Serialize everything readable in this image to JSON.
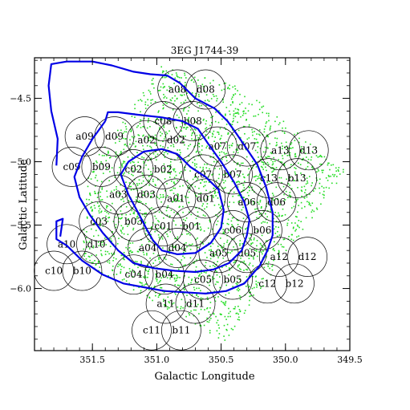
{
  "chart_data": {
    "type": "scatter",
    "title": "3EG J1744-39",
    "xlabel": "Galactic Longitude",
    "ylabel": "Galactic Latitude",
    "xlim": [
      351.95,
      349.5
    ],
    "ylim": [
      -6.49,
      -4.18
    ],
    "x_ticks": [
      {
        "v": 351.5,
        "label": "351.5"
      },
      {
        "v": 351.0,
        "label": "351.0"
      },
      {
        "v": 350.5,
        "label": "350.5"
      },
      {
        "v": 350.0,
        "label": "350.0"
      },
      {
        "v": 349.5,
        "label": "349.5"
      }
    ],
    "y_ticks": [
      {
        "v": -4.5,
        "label": "−4.5"
      },
      {
        "v": -5.0,
        "label": "−5.0"
      },
      {
        "v": -5.5,
        "label": "−5.5"
      },
      {
        "v": -6.0,
        "label": "−6.0"
      }
    ],
    "colors": {
      "contour": "#0000e6",
      "points": "#22dd22",
      "fields": "#000000"
    },
    "fields": [
      {
        "label": "a08",
        "lon": 350.84,
        "lat": -4.43
      },
      {
        "label": "d08",
        "lon": 350.62,
        "lat": -4.43
      },
      {
        "label": "c08",
        "lon": 350.95,
        "lat": -4.68
      },
      {
        "label": "b08",
        "lon": 350.72,
        "lat": -4.68
      },
      {
        "label": "a09",
        "lon": 351.56,
        "lat": -4.8
      },
      {
        "label": "d09",
        "lon": 351.33,
        "lat": -4.8
      },
      {
        "label": "a02",
        "lon": 351.08,
        "lat": -4.83
      },
      {
        "label": "d02",
        "lon": 350.85,
        "lat": -4.83
      },
      {
        "label": "a07",
        "lon": 350.53,
        "lat": -4.88
      },
      {
        "label": "d07",
        "lon": 350.3,
        "lat": -4.88
      },
      {
        "label": "a13",
        "lon": 350.04,
        "lat": -4.91
      },
      {
        "label": "d13",
        "lon": 349.82,
        "lat": -4.91
      },
      {
        "label": "c09",
        "lon": 351.66,
        "lat": -5.04
      },
      {
        "label": "b09",
        "lon": 351.43,
        "lat": -5.04
      },
      {
        "label": "c02",
        "lon": 351.18,
        "lat": -5.06
      },
      {
        "label": "b02",
        "lon": 350.95,
        "lat": -5.06
      },
      {
        "label": "c07",
        "lon": 350.64,
        "lat": -5.1
      },
      {
        "label": "b07",
        "lon": 350.41,
        "lat": -5.1
      },
      {
        "label": "c13",
        "lon": 350.13,
        "lat": -5.13
      },
      {
        "label": "b13",
        "lon": 349.91,
        "lat": -5.13
      },
      {
        "label": "a03",
        "lon": 351.3,
        "lat": -5.26
      },
      {
        "label": "d03",
        "lon": 351.08,
        "lat": -5.26
      },
      {
        "label": "a01",
        "lon": 350.85,
        "lat": -5.29
      },
      {
        "label": "d01",
        "lon": 350.62,
        "lat": -5.29
      },
      {
        "label": "a06",
        "lon": 350.3,
        "lat": -5.32
      },
      {
        "label": "d06",
        "lon": 350.07,
        "lat": -5.32
      },
      {
        "label": "c03",
        "lon": 351.45,
        "lat": -5.47
      },
      {
        "label": "b03",
        "lon": 351.18,
        "lat": -5.47
      },
      {
        "label": "c01",
        "lon": 350.95,
        "lat": -5.51
      },
      {
        "label": "b01",
        "lon": 350.73,
        "lat": -5.51
      },
      {
        "label": "c06",
        "lon": 350.41,
        "lat": -5.54
      },
      {
        "label": "b06",
        "lon": 350.18,
        "lat": -5.54
      },
      {
        "label": "a10",
        "lon": 351.7,
        "lat": -5.65
      },
      {
        "label": "d10",
        "lon": 351.47,
        "lat": -5.65
      },
      {
        "label": "a04",
        "lon": 351.07,
        "lat": -5.68
      },
      {
        "label": "d04",
        "lon": 350.84,
        "lat": -5.68
      },
      {
        "label": "a05",
        "lon": 350.52,
        "lat": -5.72
      },
      {
        "label": "d05",
        "lon": 350.3,
        "lat": -5.72
      },
      {
        "label": "a12",
        "lon": 350.05,
        "lat": -5.75
      },
      {
        "label": "d12",
        "lon": 349.83,
        "lat": -5.75
      },
      {
        "label": "c10",
        "lon": 351.8,
        "lat": -5.86
      },
      {
        "label": "b10",
        "lon": 351.58,
        "lat": -5.86
      },
      {
        "label": "c04",
        "lon": 351.18,
        "lat": -5.89
      },
      {
        "label": "b04",
        "lon": 350.94,
        "lat": -5.89
      },
      {
        "label": "c05",
        "lon": 350.64,
        "lat": -5.93
      },
      {
        "label": "b05",
        "lon": 350.41,
        "lat": -5.93
      },
      {
        "label": "c12",
        "lon": 350.14,
        "lat": -5.96
      },
      {
        "label": "b12",
        "lon": 349.93,
        "lat": -5.96
      },
      {
        "label": "a11",
        "lon": 350.93,
        "lat": -6.12
      },
      {
        "label": "d11",
        "lon": 350.7,
        "lat": -6.12
      },
      {
        "label": "c11",
        "lon": 351.04,
        "lat": -6.33
      },
      {
        "label": "b11",
        "lon": 350.81,
        "lat": -6.33
      }
    ],
    "contours": [
      [
        [
          351.78,
          -5.03
        ],
        [
          351.77,
          -4.82
        ],
        [
          351.82,
          -4.6
        ],
        [
          351.84,
          -4.4
        ],
        [
          351.82,
          -4.23
        ],
        [
          351.7,
          -4.21
        ],
        [
          351.5,
          -4.21
        ],
        [
          351.35,
          -4.24
        ],
        [
          351.18,
          -4.29
        ],
        [
          351.05,
          -4.31
        ],
        [
          350.92,
          -4.32
        ],
        [
          350.82,
          -4.38
        ],
        [
          350.7,
          -4.5
        ],
        [
          350.55,
          -4.58
        ],
        [
          350.45,
          -4.68
        ],
        [
          350.38,
          -4.78
        ],
        [
          350.3,
          -4.9
        ],
        [
          350.22,
          -5.02
        ],
        [
          350.15,
          -5.2
        ],
        [
          350.1,
          -5.4
        ],
        [
          350.1,
          -5.58
        ],
        [
          350.14,
          -5.7
        ],
        [
          350.2,
          -5.82
        ],
        [
          350.32,
          -5.96
        ],
        [
          350.46,
          -6.02
        ],
        [
          350.62,
          -6.04
        ],
        [
          350.78,
          -6.03
        ],
        [
          350.94,
          -6.02
        ],
        [
          351.1,
          -5.99
        ],
        [
          351.26,
          -5.96
        ],
        [
          351.42,
          -5.89
        ],
        [
          351.58,
          -5.78
        ],
        [
          351.7,
          -5.66
        ],
        [
          351.78,
          -5.61
        ],
        [
          351.78,
          -5.47
        ],
        [
          351.73,
          -5.45
        ],
        [
          351.75,
          -5.59
        ]
      ],
      [
        [
          351.4,
          -4.68
        ],
        [
          351.5,
          -4.82
        ],
        [
          351.58,
          -4.96
        ],
        [
          351.64,
          -5.12
        ],
        [
          351.6,
          -5.28
        ],
        [
          351.52,
          -5.42
        ],
        [
          351.42,
          -5.56
        ],
        [
          351.3,
          -5.7
        ],
        [
          351.18,
          -5.8
        ],
        [
          351.02,
          -5.84
        ],
        [
          350.86,
          -5.86
        ],
        [
          350.7,
          -5.87
        ],
        [
          350.56,
          -5.85
        ],
        [
          350.44,
          -5.8
        ],
        [
          350.34,
          -5.7
        ],
        [
          350.3,
          -5.58
        ],
        [
          350.28,
          -5.46
        ],
        [
          350.32,
          -5.32
        ],
        [
          350.4,
          -5.16
        ],
        [
          350.5,
          -5.0
        ],
        [
          350.6,
          -4.86
        ],
        [
          350.68,
          -4.74
        ],
        [
          350.8,
          -4.68
        ],
        [
          350.96,
          -4.65
        ],
        [
          351.14,
          -4.63
        ],
        [
          351.3,
          -4.61
        ],
        [
          351.38,
          -4.61
        ],
        [
          351.4,
          -4.68
        ]
      ],
      [
        [
          351.08,
          -5.53
        ],
        [
          351.13,
          -5.43
        ],
        [
          351.22,
          -5.26
        ],
        [
          351.28,
          -5.1
        ],
        [
          351.22,
          -5.0
        ],
        [
          351.1,
          -4.92
        ],
        [
          350.96,
          -4.9
        ],
        [
          350.84,
          -4.94
        ],
        [
          350.74,
          -5.04
        ],
        [
          350.62,
          -5.12
        ],
        [
          350.52,
          -5.22
        ],
        [
          350.48,
          -5.38
        ],
        [
          350.5,
          -5.52
        ],
        [
          350.58,
          -5.64
        ],
        [
          350.7,
          -5.72
        ],
        [
          350.84,
          -5.73
        ],
        [
          350.96,
          -5.7
        ],
        [
          351.03,
          -5.62
        ],
        [
          351.08,
          -5.53
        ]
      ]
    ]
  }
}
